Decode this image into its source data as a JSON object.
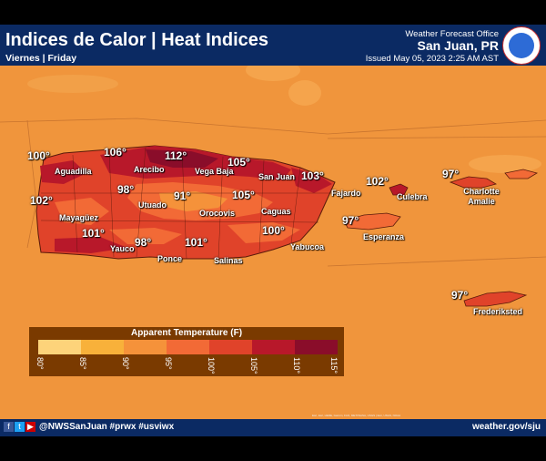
{
  "header": {
    "title": "Indices de Calor | Heat Indices",
    "subtitle": "Viernes | Friday",
    "office": "Weather Forecast Office",
    "city": "San Juan, PR",
    "issued": "Issued May 05, 2023 2:25 AM AST",
    "logo_text": "NATIONAL WEATHER SERVICE"
  },
  "colors": {
    "header_bg": "#0b2a63",
    "background": "#f0953c",
    "land_base": "#e0432a",
    "legend_bg": "#7a3a00"
  },
  "legend": {
    "title": "Apparent Temperature (F)",
    "ticks": [
      "80°",
      "85°",
      "90°",
      "95°",
      "100°",
      "105°",
      "110°",
      "115°"
    ],
    "colors": [
      "#fdd37a",
      "#f8b13a",
      "#f5923a",
      "#f26a36",
      "#e0432a",
      "#b8182a",
      "#8a0d2a"
    ]
  },
  "heat_values": [
    {
      "id": "v-100-west",
      "value": "100°"
    },
    {
      "id": "v-106",
      "value": "106°"
    },
    {
      "id": "v-112",
      "value": "112°"
    },
    {
      "id": "v-105-north",
      "value": "105°"
    },
    {
      "id": "v-103-east",
      "value": "103°"
    },
    {
      "id": "v-102-culebra",
      "value": "102°"
    },
    {
      "id": "v-97-stthomas",
      "value": "97°"
    },
    {
      "id": "v-98-utuado",
      "value": "98°"
    },
    {
      "id": "v-91",
      "value": "91°"
    },
    {
      "id": "v-105-sanjuan",
      "value": "105°"
    },
    {
      "id": "v-102-west",
      "value": "102°"
    },
    {
      "id": "v-97-vieques",
      "value": "97°"
    },
    {
      "id": "v-101-yauco",
      "value": "101°"
    },
    {
      "id": "v-98-ponce",
      "value": "98°"
    },
    {
      "id": "v-101-salinas",
      "value": "101°"
    },
    {
      "id": "v-100-caguas",
      "value": "100°"
    },
    {
      "id": "v-97-stcroix",
      "value": "97°"
    }
  ],
  "towns": [
    "Aguadilla",
    "Arecibo",
    "Vega Baja",
    "San Juan",
    "Fajardo",
    "Culebra",
    "Charlotte Amalie",
    "Utuado",
    "Orocovis",
    "Caguas",
    "Mayagüez",
    "Esperanza",
    "Yauco",
    "Ponce",
    "Salinas",
    "Yabucoa",
    "Frederiksted"
  ],
  "footer": {
    "icons": [
      "facebook-icon",
      "twitter-icon",
      "youtube-icon"
    ],
    "handle": "@NWSSanJuan #prwx #usviwx",
    "website": "weather.gov/sju"
  },
  "credit": "Esri, Esri, HERE, Garmin, FAO, METI/NASA, USGS | Esri, USGS, NOAA"
}
